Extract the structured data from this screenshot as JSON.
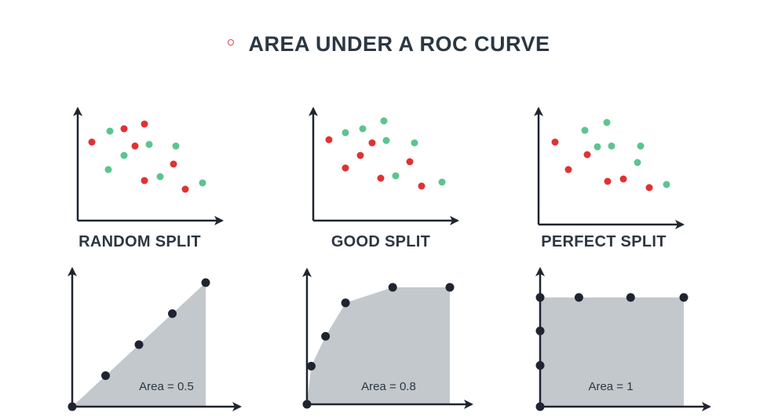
{
  "title": "AREA UNDER A ROC CURVE",
  "colors": {
    "axis": "#1f2530",
    "positive": "#5cc48f",
    "negative": "#e03232",
    "area_fill": "#c3c8cc",
    "roc_point": "#1f2530",
    "bullet": "#d24a4a"
  },
  "panels": [
    {
      "label": "RANDOM SPLIT",
      "area_label": "Area = 0.5",
      "roc_points": [
        [
          0,
          0
        ],
        [
          0.25,
          0.25
        ],
        [
          0.5,
          0.5
        ],
        [
          0.75,
          0.75
        ],
        [
          1,
          1
        ]
      ]
    },
    {
      "label": "GOOD SPLIT",
      "area_label": "Area = 0.8",
      "roc_points": [
        [
          0,
          0
        ],
        [
          0.03,
          0.32
        ],
        [
          0.13,
          0.57
        ],
        [
          0.27,
          0.85
        ],
        [
          0.6,
          0.98
        ],
        [
          1,
          0.98
        ]
      ]
    },
    {
      "label": "PERFECT SPLIT",
      "area_label": "Area = 1",
      "roc_points": [
        [
          0,
          0
        ],
        [
          0,
          0.37
        ],
        [
          0,
          0.68
        ],
        [
          0,
          0.98
        ],
        [
          0.27,
          0.98
        ],
        [
          0.63,
          0.98
        ],
        [
          1,
          0.98
        ]
      ]
    }
  ]
}
